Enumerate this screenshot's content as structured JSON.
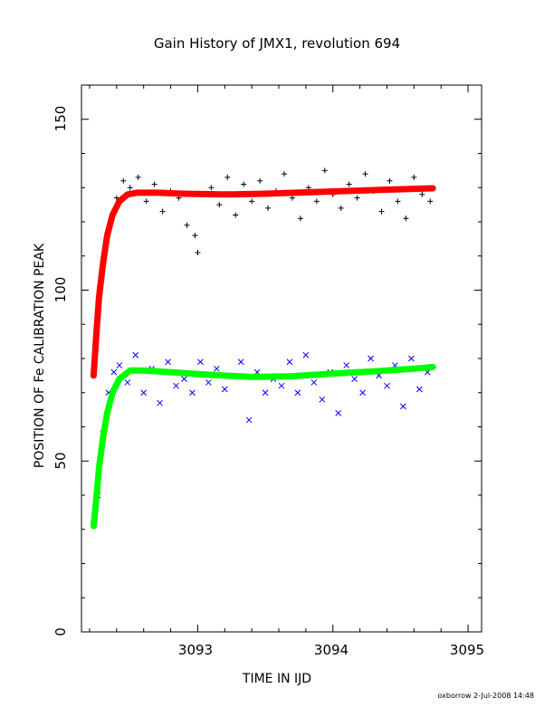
{
  "chart_data": {
    "type": "scatter",
    "title": "Gain History of JMX1, revolution 694",
    "xlabel": "TIME IN IJD",
    "ylabel": "POSITION OF Fe CALIBRATION PEAK",
    "xlim": [
      3092.14,
      3095.1
    ],
    "ylim": [
      0,
      160
    ],
    "xticks": [
      "3093",
      "3094",
      "3095"
    ],
    "yticks": [
      "0",
      "50",
      "100",
      "150"
    ],
    "footer": "oxborrow  2-Jul-2008 14:48",
    "colors": {
      "upper_points": "#000000",
      "upper_fit": "#ff0000",
      "lower_points": "#0000ff",
      "lower_fit": "#00ff00",
      "axis": "#000000"
    },
    "series": [
      {
        "marker": "plus",
        "color": "#000000",
        "x": [
          3092.23,
          3092.26,
          3092.29,
          3092.32,
          3092.36,
          3092.4,
          3092.45,
          3092.5,
          3092.56,
          3092.62,
          3092.68,
          3092.74,
          3092.8,
          3092.86,
          3092.92,
          3092.98,
          3093.0,
          3093.05,
          3093.1,
          3093.16,
          3093.22,
          3093.28,
          3093.34,
          3093.4,
          3093.46,
          3093.52,
          3093.58,
          3093.64,
          3093.7,
          3093.76,
          3093.82,
          3093.88,
          3093.94,
          3094.0,
          3094.06,
          3094.12,
          3094.18,
          3094.24,
          3094.3,
          3094.36,
          3094.42,
          3094.48,
          3094.54,
          3094.6,
          3094.66,
          3094.72
        ],
        "values": [
          76,
          92,
          104,
          114,
          121,
          127,
          132,
          130,
          133,
          126,
          131,
          123,
          129,
          127,
          119,
          116,
          111,
          128,
          130,
          125,
          133,
          122,
          131,
          126,
          132,
          124,
          129,
          134,
          127,
          121,
          130,
          126,
          135,
          128,
          124,
          131,
          127,
          134,
          129,
          123,
          132,
          126,
          121,
          133,
          128,
          126
        ]
      },
      {
        "name": "",
        "marker": "line",
        "color": "#ff0000",
        "x": [
          3092.23,
          3092.25,
          3092.27,
          3092.3,
          3092.33,
          3092.37,
          3092.42,
          3092.48,
          3092.55,
          3092.7,
          3092.9,
          3093.2,
          3093.5,
          3093.8,
          3094.1,
          3094.4,
          3094.74
        ],
        "values": [
          75,
          87,
          98,
          108,
          116,
          122,
          126,
          128,
          128.5,
          128.5,
          128.2,
          128.0,
          128.2,
          128.6,
          129.0,
          129.4,
          129.8
        ]
      },
      {
        "marker": "cross",
        "color": "#0000ff",
        "x": [
          3092.26,
          3092.3,
          3092.34,
          3092.38,
          3092.42,
          3092.48,
          3092.54,
          3092.6,
          3092.66,
          3092.72,
          3092.78,
          3092.84,
          3092.9,
          3092.96,
          3093.02,
          3093.08,
          3093.14,
          3093.2,
          3093.26,
          3093.32,
          3093.38,
          3093.44,
          3093.5,
          3093.56,
          3093.62,
          3093.68,
          3093.74,
          3093.8,
          3093.86,
          3093.92,
          3093.98,
          3094.04,
          3094.1,
          3094.16,
          3094.22,
          3094.28,
          3094.34,
          3094.4,
          3094.46,
          3094.52,
          3094.58,
          3094.64,
          3094.7
        ],
        "values": [
          40,
          58,
          70,
          76,
          78,
          73,
          81,
          70,
          77,
          67,
          79,
          72,
          74,
          70,
          79,
          73,
          77,
          71,
          75,
          79,
          62,
          76,
          70,
          74,
          72,
          79,
          70,
          81,
          73,
          68,
          76,
          64,
          78,
          74,
          70,
          80,
          75,
          72,
          78,
          66,
          80,
          71,
          76
        ]
      },
      {
        "name": "",
        "marker": "line",
        "color": "#00ff00",
        "x": [
          3092.23,
          3092.25,
          3092.27,
          3092.3,
          3092.33,
          3092.37,
          3092.42,
          3092.5,
          3092.6,
          3092.8,
          3093.1,
          3093.4,
          3093.7,
          3094.0,
          3094.3,
          3094.6,
          3094.74
        ],
        "values": [
          31,
          39,
          48,
          57,
          64,
          70,
          74,
          76.5,
          76.5,
          76,
          75.2,
          74.6,
          74.8,
          75.6,
          76.2,
          77.0,
          77.5
        ]
      }
    ]
  }
}
